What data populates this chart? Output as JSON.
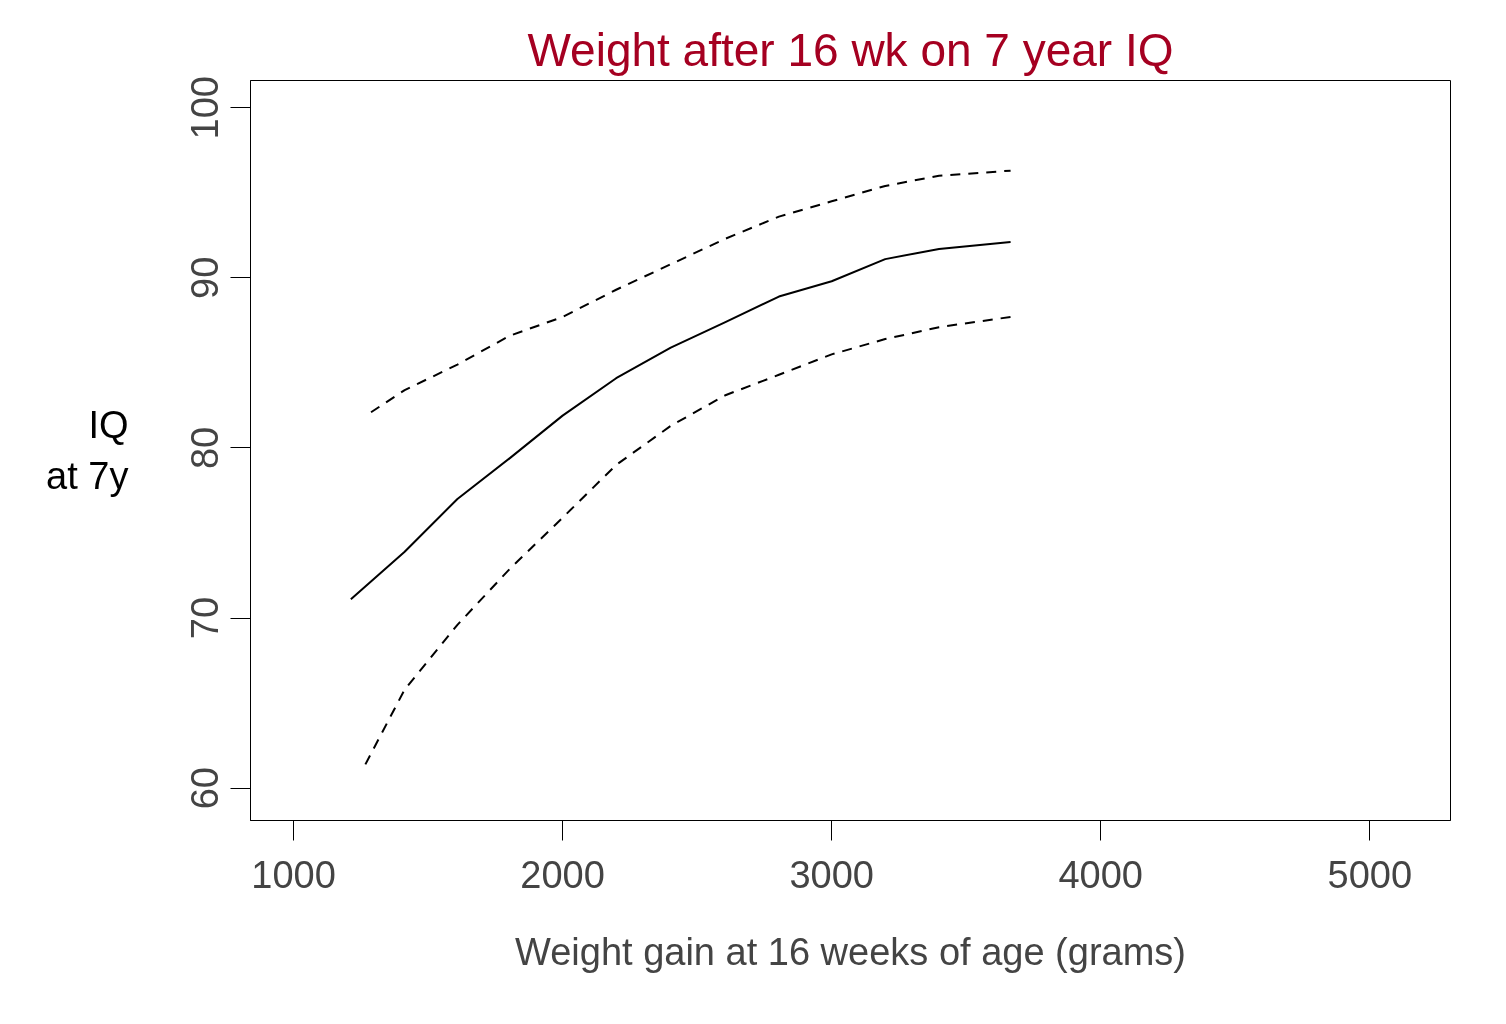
{
  "chart_data": {
    "type": "line",
    "title": "Weight after 16 wk on 7 year IQ",
    "xlabel": "Weight gain at 16 weeks of age (grams)",
    "ylabel": "IQ\nat 7y",
    "xlim": [
      840,
      5300
    ],
    "ylim": [
      58.1,
      101.6
    ],
    "xticks": [
      1000,
      2000,
      3000,
      4000,
      5000
    ],
    "yticks": [
      60,
      70,
      80,
      90,
      100
    ],
    "grid": false,
    "marker": "none",
    "series": [
      {
        "color": "#000000",
        "line_style": "solid",
        "x": [
          1213,
          1413,
          1609,
          1804,
          2000,
          2199,
          2402,
          2605,
          2804,
          3000,
          3199,
          3399,
          3665
        ],
        "values": [
          71.1,
          73.9,
          77.0,
          79.4,
          81.9,
          84.1,
          85.9,
          87.4,
          88.9,
          89.8,
          91.1,
          91.7,
          92.1
        ]
      },
      {
        "color": "#000000",
        "line_style": "dashed",
        "x": [
          1288,
          1413,
          1609,
          1804,
          2000,
          2199,
          2402,
          2605,
          2804,
          3000,
          3199,
          3399,
          3665
        ],
        "values": [
          82.1,
          83.4,
          84.9,
          86.6,
          87.7,
          89.3,
          90.8,
          92.3,
          93.6,
          94.5,
          95.4,
          96.0,
          96.3
        ]
      },
      {
        "color": "#000000",
        "line_style": "dashed",
        "x": [
          1267,
          1413,
          1609,
          1804,
          2000,
          2199,
          2402,
          2605,
          2804,
          3000,
          3199,
          3399,
          3665
        ],
        "values": [
          61.4,
          65.8,
          69.6,
          72.9,
          75.9,
          79.0,
          81.3,
          83.1,
          84.3,
          85.5,
          86.4,
          87.1,
          87.7
        ]
      }
    ]
  }
}
